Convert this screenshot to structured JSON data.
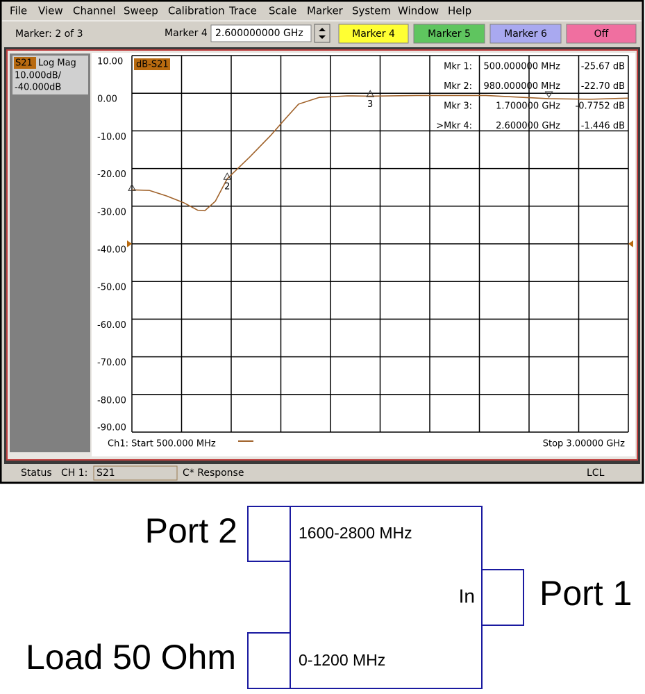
{
  "menu": [
    "File",
    "View",
    "Channel",
    "Sweep",
    "Calibration",
    "Trace",
    "Scale",
    "Marker",
    "System",
    "Window",
    "Help"
  ],
  "toolbar": {
    "marker_count": "Marker: 2 of 3",
    "marker_field_label": "Marker 4",
    "marker_field_value": "2.600000000 GHz",
    "buttons": [
      "Marker 4",
      "Marker 5",
      "Marker 6",
      "Off"
    ]
  },
  "channel_panel": {
    "parameter": "S21",
    "format": "Log Mag",
    "scale": "10.000dB/",
    "reference": "-40.000dB"
  },
  "chart_data": {
    "type": "line",
    "start_label": "Ch1: Start  500.000 MHz",
    "stop_label": "Stop  3.00000 GHz",
    "x": [
      500,
      587,
      675,
      762,
      832,
      867,
      920,
      980,
      1094,
      1199,
      1269,
      1339,
      1444,
      1584,
      1700,
      1934,
      2283,
      2600,
      2808,
      3000
    ],
    "series": [
      {
        "name": "dB-S21",
        "color": "#a0622a",
        "values": [
          -25.67,
          -25.8,
          -27.3,
          -29.1,
          -31.1,
          -31.2,
          -28.7,
          -22.7,
          -16.9,
          -11.2,
          -7.0,
          -2.9,
          -1.1,
          -0.7,
          -0.78,
          -0.6,
          -0.6,
          -1.45,
          -1.6,
          -1.3
        ]
      }
    ],
    "xlim": [
      500,
      3000
    ],
    "xticks": [
      500,
      750,
      1000,
      1250,
      1500,
      1750,
      2000,
      2250,
      2500,
      2750,
      3000
    ],
    "ylim": [
      -90,
      10
    ],
    "yticks": [
      {
        "value": -90,
        "label": "-90.00"
      },
      {
        "value": -80,
        "label": "-80.00"
      },
      {
        "value": -70,
        "label": "-70.00"
      },
      {
        "value": -60,
        "label": "-60.00"
      },
      {
        "value": -50,
        "label": "-50.00"
      },
      {
        "value": -40,
        "label": "-40.00"
      },
      {
        "value": -30,
        "label": "-30.00"
      },
      {
        "value": -20,
        "label": "-20.00"
      },
      {
        "value": -10,
        "label": "-10.00"
      },
      {
        "value": 0,
        "label": "0.00"
      },
      {
        "value": 10,
        "label": "10.00"
      }
    ],
    "grid": true,
    "reference_level": -40,
    "markers": [
      {
        "name": "Mkr  1:",
        "stimulus": "500.000000 MHz",
        "response": "-25.67 dB",
        "x": 500,
        "value": -25.67
      },
      {
        "name": "Mkr  2:",
        "stimulus": "980.000000 MHz",
        "response": "-22.70 dB",
        "x": 980,
        "value": -22.7,
        "tag": "2"
      },
      {
        "name": "Mkr  3:",
        "stimulus": "1.700000 GHz",
        "response": "-0.7752 dB",
        "x": 1700,
        "value": -0.7752,
        "tag": "3"
      },
      {
        "name": ">Mkr  4:",
        "stimulus": "2.600000 GHz",
        "response": "-1.446 dB",
        "x": 2600,
        "value": -1.446,
        "active": true
      }
    ]
  },
  "status": {
    "label": "Status",
    "channel": "CH 1:",
    "parameter": "S21",
    "mode": "C* Response",
    "remote": "LCL"
  },
  "diagram": {
    "port2": "Port 2",
    "load": "Load 50 Ohm",
    "port1": "Port 1",
    "high_band": "1600-2800 MHz",
    "low_band": "0-1200 MHz",
    "input": "In"
  }
}
